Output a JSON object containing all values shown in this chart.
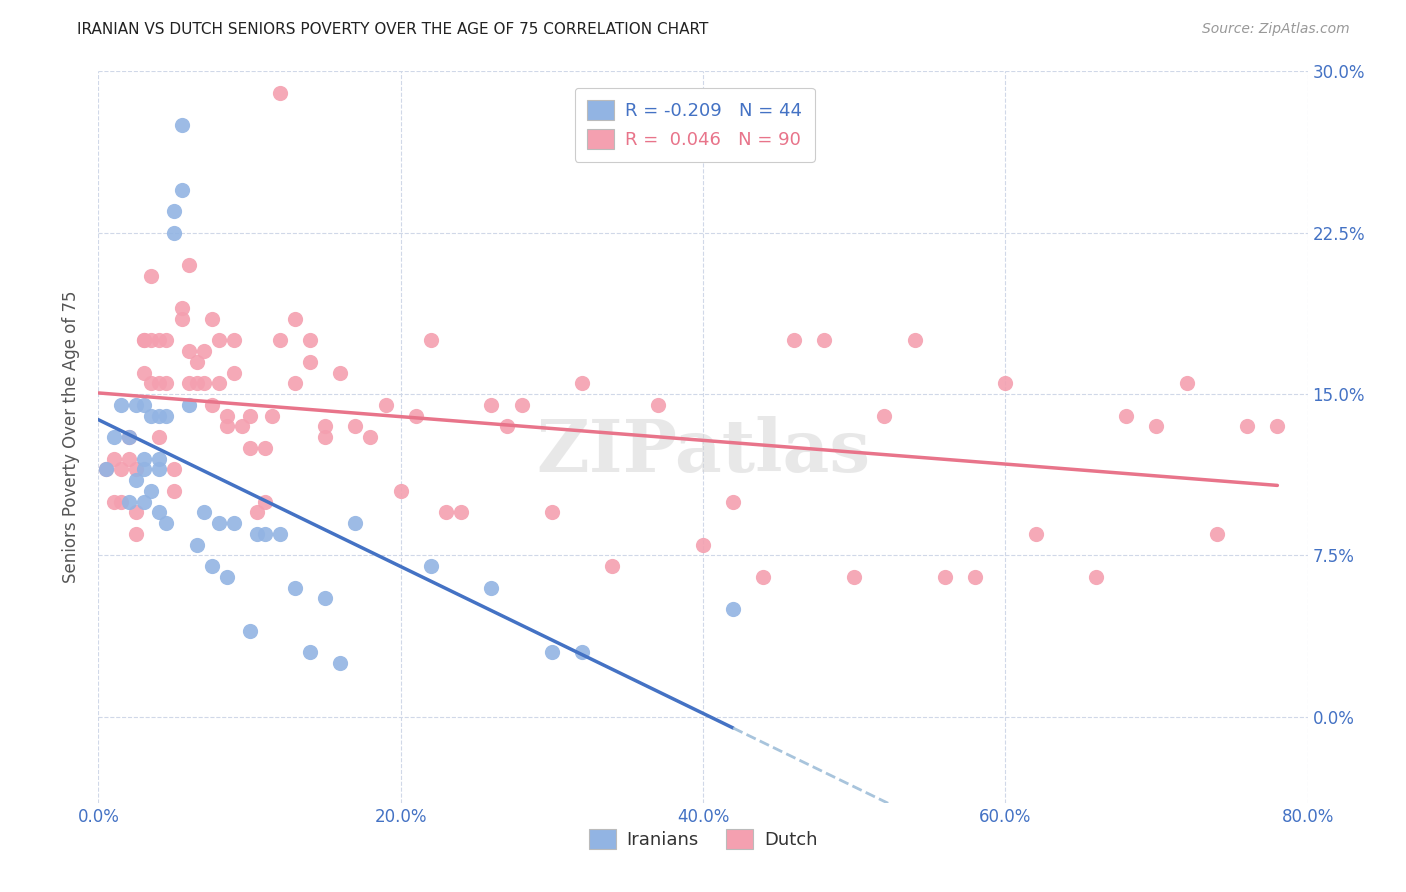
{
  "title": "IRANIAN VS DUTCH SENIORS POVERTY OVER THE AGE OF 75 CORRELATION CHART",
  "source": "Source: ZipAtlas.com",
  "ylabel": "Seniors Poverty Over the Age of 75",
  "xlabel_ticks": [
    "0.0%",
    "20.0%",
    "40.0%",
    "60.0%",
    "80.0%"
  ],
  "ylabel_ticks": [
    "0.0%",
    "7.5%",
    "15.0%",
    "22.5%",
    "30.0%"
  ],
  "xlim": [
    0.0,
    0.8
  ],
  "ylim": [
    -0.04,
    0.3
  ],
  "ytick_vals": [
    0.0,
    0.075,
    0.15,
    0.225,
    0.3
  ],
  "xtick_vals": [
    0.0,
    0.2,
    0.4,
    0.6,
    0.8
  ],
  "legend_iranian": "R = -0.209   N = 44",
  "legend_dutch": "R =  0.046   N = 90",
  "iranian_color": "#92b4e3",
  "dutch_color": "#f4a0b0",
  "iranian_line_color": "#4472c4",
  "dutch_line_color": "#e8748a",
  "dashed_line_color": "#a8c4dc",
  "background_color": "#ffffff",
  "grid_color": "#d0d8e8",
  "axis_label_color": "#4472c4",
  "iranians_x": [
    0.005,
    0.01,
    0.015,
    0.02,
    0.02,
    0.025,
    0.025,
    0.03,
    0.03,
    0.03,
    0.03,
    0.035,
    0.035,
    0.04,
    0.04,
    0.04,
    0.04,
    0.045,
    0.045,
    0.05,
    0.05,
    0.055,
    0.055,
    0.06,
    0.065,
    0.07,
    0.075,
    0.08,
    0.085,
    0.09,
    0.1,
    0.105,
    0.11,
    0.12,
    0.13,
    0.14,
    0.15,
    0.16,
    0.17,
    0.22,
    0.26,
    0.3,
    0.32,
    0.42
  ],
  "iranians_y": [
    0.115,
    0.13,
    0.145,
    0.13,
    0.1,
    0.145,
    0.11,
    0.145,
    0.12,
    0.115,
    0.1,
    0.14,
    0.105,
    0.14,
    0.12,
    0.115,
    0.095,
    0.14,
    0.09,
    0.235,
    0.225,
    0.275,
    0.245,
    0.145,
    0.08,
    0.095,
    0.07,
    0.09,
    0.065,
    0.09,
    0.04,
    0.085,
    0.085,
    0.085,
    0.06,
    0.03,
    0.055,
    0.025,
    0.09,
    0.07,
    0.06,
    0.03,
    0.03,
    0.05
  ],
  "dutch_x": [
    0.005,
    0.01,
    0.01,
    0.015,
    0.015,
    0.02,
    0.02,
    0.025,
    0.025,
    0.025,
    0.03,
    0.03,
    0.03,
    0.035,
    0.035,
    0.035,
    0.04,
    0.04,
    0.04,
    0.045,
    0.045,
    0.05,
    0.05,
    0.055,
    0.055,
    0.06,
    0.06,
    0.06,
    0.065,
    0.065,
    0.07,
    0.07,
    0.075,
    0.075,
    0.08,
    0.08,
    0.085,
    0.085,
    0.09,
    0.09,
    0.095,
    0.1,
    0.1,
    0.105,
    0.11,
    0.11,
    0.115,
    0.12,
    0.12,
    0.13,
    0.13,
    0.14,
    0.14,
    0.15,
    0.15,
    0.16,
    0.17,
    0.18,
    0.19,
    0.2,
    0.21,
    0.22,
    0.23,
    0.24,
    0.26,
    0.27,
    0.28,
    0.3,
    0.32,
    0.34,
    0.37,
    0.4,
    0.42,
    0.44,
    0.46,
    0.48,
    0.5,
    0.52,
    0.54,
    0.56,
    0.58,
    0.6,
    0.62,
    0.66,
    0.68,
    0.7,
    0.72,
    0.74,
    0.76,
    0.78
  ],
  "dutch_y": [
    0.115,
    0.12,
    0.1,
    0.115,
    0.1,
    0.12,
    0.13,
    0.115,
    0.095,
    0.085,
    0.175,
    0.175,
    0.16,
    0.175,
    0.155,
    0.205,
    0.175,
    0.155,
    0.13,
    0.175,
    0.155,
    0.115,
    0.105,
    0.185,
    0.19,
    0.17,
    0.155,
    0.21,
    0.165,
    0.155,
    0.17,
    0.155,
    0.185,
    0.145,
    0.175,
    0.155,
    0.135,
    0.14,
    0.16,
    0.175,
    0.135,
    0.125,
    0.14,
    0.095,
    0.1,
    0.125,
    0.14,
    0.29,
    0.175,
    0.155,
    0.185,
    0.175,
    0.165,
    0.13,
    0.135,
    0.16,
    0.135,
    0.13,
    0.145,
    0.105,
    0.14,
    0.175,
    0.095,
    0.095,
    0.145,
    0.135,
    0.145,
    0.095,
    0.155,
    0.07,
    0.145,
    0.08,
    0.1,
    0.065,
    0.175,
    0.175,
    0.065,
    0.14,
    0.175,
    0.065,
    0.065,
    0.155,
    0.085,
    0.065,
    0.14,
    0.135,
    0.155,
    0.085,
    0.135,
    0.135
  ]
}
